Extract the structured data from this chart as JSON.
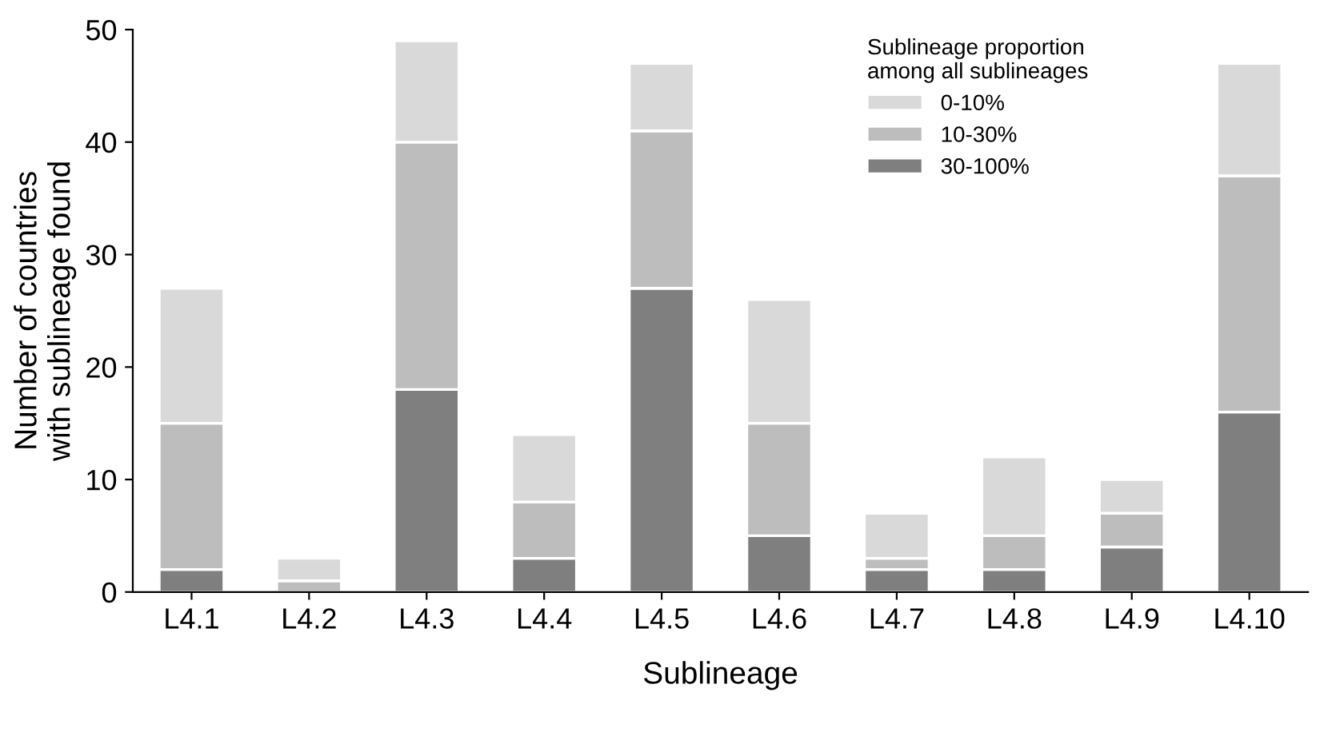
{
  "chart_data": {
    "type": "bar",
    "stacked": true,
    "xlabel": "Sublineage",
    "ylabel": "Number of countries\nwith sublineage found",
    "legend_title": "Sublineage proportion\namong all sublineages",
    "legend": "top right",
    "grid": false,
    "categories": [
      "L4.1",
      "L4.2",
      "L4.3",
      "L4.4",
      "L4.5",
      "L4.6",
      "L4.7",
      "L4.8",
      "L4.9",
      "L4.10"
    ],
    "ylim": [
      0,
      50
    ],
    "yticks": [
      0,
      10,
      20,
      30,
      40,
      50
    ],
    "series": [
      {
        "name": "30-100%",
        "color": "#7f7f7f",
        "values": [
          2,
          0,
          18,
          3,
          27,
          5,
          2,
          2,
          4,
          16
        ]
      },
      {
        "name": "10-30%",
        "color": "#bdbdbd",
        "values": [
          13,
          1,
          22,
          5,
          14,
          10,
          1,
          3,
          3,
          21
        ]
      },
      {
        "name": "0-10%",
        "color": "#d9d9d9",
        "values": [
          12,
          2,
          9,
          6,
          6,
          11,
          4,
          7,
          3,
          10
        ]
      }
    ]
  }
}
